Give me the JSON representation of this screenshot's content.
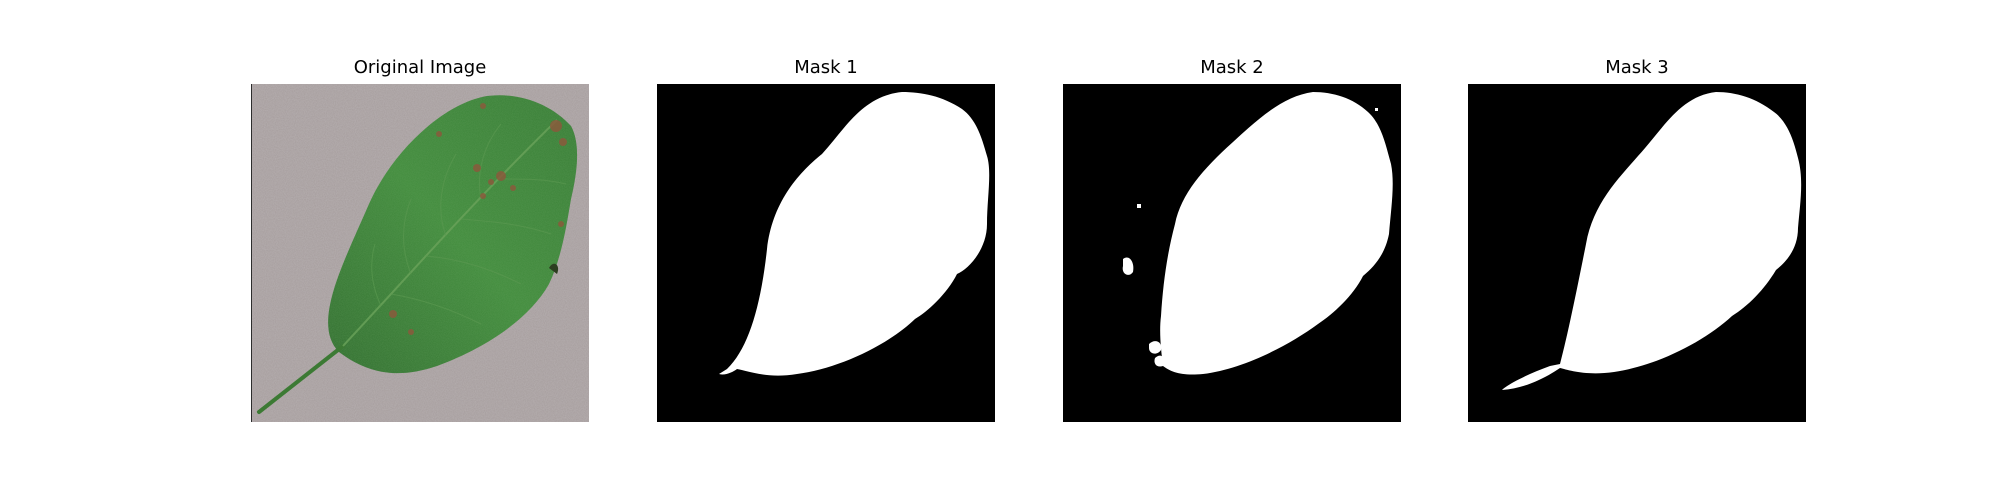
{
  "figure": {
    "panels": [
      {
        "title": "Original Image",
        "kind": "photo",
        "subject": "leaf-photo"
      },
      {
        "title": "Mask 1",
        "kind": "mask",
        "subject": "leaf-mask"
      },
      {
        "title": "Mask 2",
        "kind": "mask",
        "subject": "leaf-mask"
      },
      {
        "title": "Mask 3",
        "kind": "mask",
        "subject": "leaf-mask"
      }
    ]
  },
  "colors": {
    "figure_background": "#ffffff",
    "mask_background": "#000000",
    "mask_foreground": "#ffffff",
    "leaf_green": "#3f8a3a",
    "leaf_dark": "#2f6b2a",
    "background_gray": "#a59c9c",
    "spot_brown": "#8a5a3c"
  }
}
